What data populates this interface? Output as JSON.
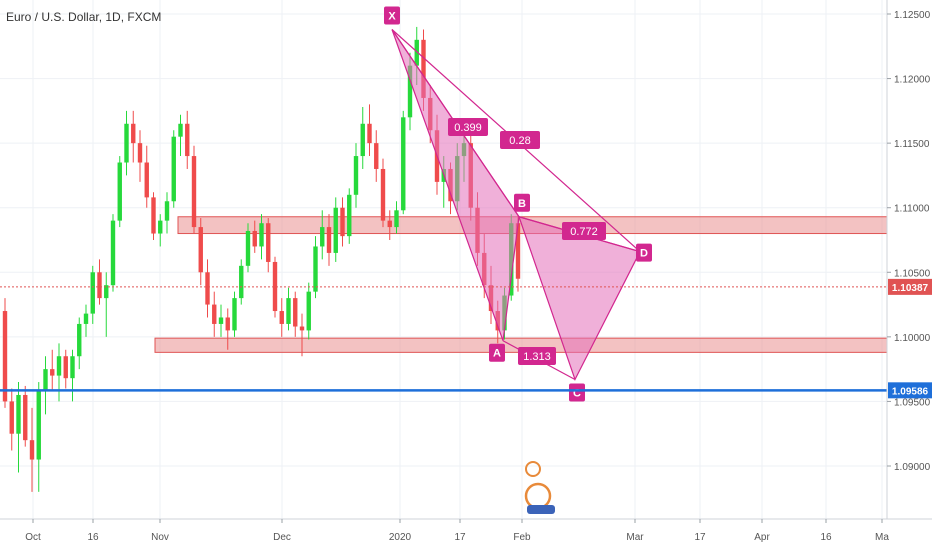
{
  "title": "Euro / U.S. Dollar, 1D, FXCM",
  "colors": {
    "up": "#26d93b",
    "down": "#ef4b4b",
    "pattern": "#d2278f",
    "pattern_fill": "#e36fb9",
    "zone": "#e98f8f",
    "support": "#1e6fd9",
    "price_line": "#e05353",
    "grid": "#eef1f5"
  },
  "chart_data": {
    "type": "candlestick",
    "symbol": "EURUSD",
    "timeframe": "1D",
    "source": "FXCM",
    "y_axis": {
      "range": [
        1.0875,
        1.1265
      ],
      "ticks": [
        "1.12500",
        "1.12000",
        "1.11500",
        "1.11000",
        "1.10500",
        "1.10000",
        "1.09500",
        "1.09000"
      ]
    },
    "x_axis": {
      "labels": [
        "Oct",
        "16",
        "Nov",
        "Dec",
        "2020",
        "17",
        "Feb",
        "Mar",
        "17",
        "Apr",
        "16",
        "Ma"
      ]
    },
    "current_price": "1.10387",
    "support_line": "1.09586",
    "zones": [
      {
        "name": "resistance-zone",
        "from": 1.108,
        "to": 1.1093
      },
      {
        "name": "support-zone",
        "from": 1.0988,
        "to": 1.0999
      }
    ],
    "pattern": {
      "points": [
        {
          "label": "X",
          "price": 1.1238
        },
        {
          "label": "A",
          "price": 1.0997
        },
        {
          "label": "B",
          "price": 1.1093
        },
        {
          "label": "C",
          "price": 1.0967
        },
        {
          "label": "D",
          "price": 1.1066
        }
      ],
      "ratios": [
        "0.399",
        "0.28",
        "0.772",
        "1.313"
      ]
    },
    "candles": [
      [
        1.102,
        1.103,
        1.0945,
        1.095
      ],
      [
        1.095,
        1.096,
        1.0912,
        1.0925
      ],
      [
        1.0925,
        1.0965,
        1.0895,
        1.0955
      ],
      [
        1.0955,
        1.0962,
        1.0915,
        1.092
      ],
      [
        1.092,
        1.0945,
        1.088,
        1.0905
      ],
      [
        1.0905,
        1.0965,
        1.088,
        1.0958
      ],
      [
        1.0958,
        1.0985,
        1.094,
        1.0975
      ],
      [
        1.0975,
        1.099,
        1.0958,
        1.097
      ],
      [
        1.097,
        1.0995,
        1.095,
        1.0985
      ],
      [
        1.0985,
        1.099,
        1.096,
        1.0968
      ],
      [
        1.0968,
        1.099,
        1.095,
        1.0985
      ],
      [
        1.0985,
        1.1015,
        1.0975,
        1.101
      ],
      [
        1.101,
        1.1025,
        1.1,
        1.1018
      ],
      [
        1.1018,
        1.1055,
        1.101,
        1.105
      ],
      [
        1.105,
        1.106,
        1.1025,
        1.103
      ],
      [
        1.103,
        1.105,
        1.1,
        1.104
      ],
      [
        1.104,
        1.1095,
        1.1035,
        1.109
      ],
      [
        1.109,
        1.114,
        1.1085,
        1.1135
      ],
      [
        1.1135,
        1.1175,
        1.1125,
        1.1165
      ],
      [
        1.1165,
        1.1175,
        1.1135,
        1.115
      ],
      [
        1.115,
        1.116,
        1.112,
        1.1135
      ],
      [
        1.1135,
        1.1148,
        1.11,
        1.1108
      ],
      [
        1.1108,
        1.1112,
        1.1075,
        1.108
      ],
      [
        1.108,
        1.1095,
        1.107,
        1.109
      ],
      [
        1.109,
        1.1112,
        1.108,
        1.1105
      ],
      [
        1.1105,
        1.116,
        1.11,
        1.1155
      ],
      [
        1.1155,
        1.1172,
        1.114,
        1.1165
      ],
      [
        1.1165,
        1.1175,
        1.113,
        1.114
      ],
      [
        1.114,
        1.1148,
        1.108,
        1.1085
      ],
      [
        1.1085,
        1.1092,
        1.104,
        1.105
      ],
      [
        1.105,
        1.106,
        1.1015,
        1.1025
      ],
      [
        1.1025,
        1.1035,
        1.1,
        1.101
      ],
      [
        1.101,
        1.1025,
        1.1,
        1.1015
      ],
      [
        1.1015,
        1.1022,
        1.099,
        1.1005
      ],
      [
        1.1005,
        1.1035,
        1.1,
        1.103
      ],
      [
        1.103,
        1.106,
        1.1025,
        1.1055
      ],
      [
        1.1055,
        1.1088,
        1.105,
        1.1082
      ],
      [
        1.1082,
        1.109,
        1.1065,
        1.107
      ],
      [
        1.107,
        1.1095,
        1.106,
        1.1088
      ],
      [
        1.1088,
        1.1092,
        1.105,
        1.1058
      ],
      [
        1.1058,
        1.1062,
        1.1015,
        1.102
      ],
      [
        1.102,
        1.103,
        1.1,
        1.101
      ],
      [
        1.101,
        1.1038,
        1.1005,
        1.103
      ],
      [
        1.103,
        1.1035,
        1.1,
        1.1008
      ],
      [
        1.1008,
        1.1018,
        1.0985,
        1.1005
      ],
      [
        1.1005,
        1.1042,
        1.0998,
        1.1035
      ],
      [
        1.1035,
        1.1078,
        1.103,
        1.107
      ],
      [
        1.107,
        1.1098,
        1.106,
        1.1085
      ],
      [
        1.1085,
        1.1095,
        1.1055,
        1.1065
      ],
      [
        1.1065,
        1.1108,
        1.1058,
        1.11
      ],
      [
        1.11,
        1.1108,
        1.107,
        1.1078
      ],
      [
        1.1078,
        1.1115,
        1.1072,
        1.111
      ],
      [
        1.111,
        1.115,
        1.11,
        1.114
      ],
      [
        1.114,
        1.1178,
        1.113,
        1.1165
      ],
      [
        1.1165,
        1.118,
        1.114,
        1.115
      ],
      [
        1.115,
        1.116,
        1.112,
        1.113
      ],
      [
        1.113,
        1.1138,
        1.1085,
        1.109
      ],
      [
        1.109,
        1.1098,
        1.1075,
        1.1085
      ],
      [
        1.1085,
        1.1105,
        1.108,
        1.1098
      ],
      [
        1.1098,
        1.1175,
        1.1095,
        1.117
      ],
      [
        1.117,
        1.122,
        1.116,
        1.121
      ],
      [
        1.121,
        1.124,
        1.1195,
        1.123
      ],
      [
        1.123,
        1.1238,
        1.1175,
        1.1185
      ],
      [
        1.1185,
        1.1195,
        1.115,
        1.116
      ],
      [
        1.116,
        1.1172,
        1.111,
        1.112
      ],
      [
        1.112,
        1.114,
        1.11,
        1.113
      ],
      [
        1.113,
        1.1135,
        1.1095,
        1.1105
      ],
      [
        1.1105,
        1.115,
        1.1098,
        1.114
      ],
      [
        1.114,
        1.116,
        1.112,
        1.115
      ],
      [
        1.115,
        1.116,
        1.109,
        1.11
      ],
      [
        1.11,
        1.1112,
        1.1055,
        1.1065
      ],
      [
        1.1065,
        1.108,
        1.103,
        1.104
      ],
      [
        1.104,
        1.1055,
        1.101,
        1.102
      ],
      [
        1.102,
        1.1028,
        1.0995,
        1.1005
      ],
      [
        1.1005,
        1.1038,
        1.0998,
        1.1032
      ],
      [
        1.1032,
        1.1095,
        1.1028,
        1.1088
      ],
      [
        1.1088,
        1.1094,
        1.1035,
        1.1045
      ]
    ]
  }
}
